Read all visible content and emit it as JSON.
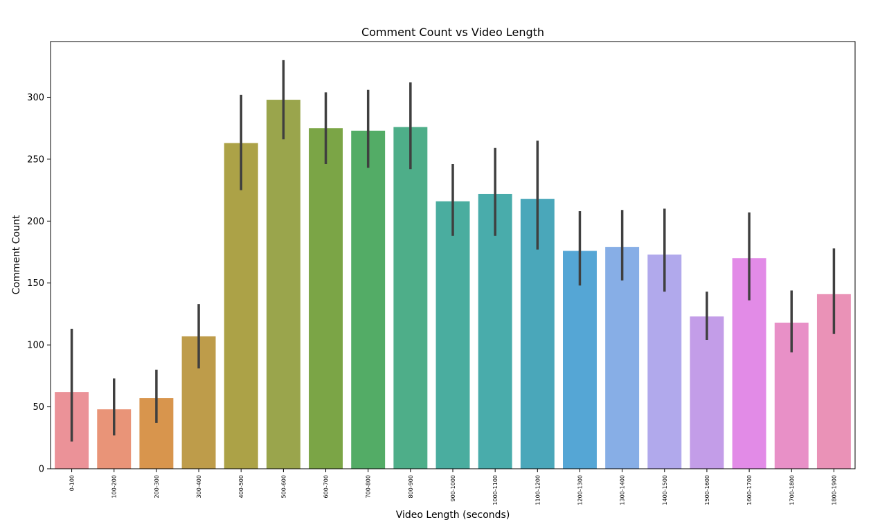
{
  "chart_data": {
    "type": "bar",
    "title": "Comment Count vs Video Length",
    "xlabel": "Video Length (seconds)",
    "ylabel": "Comment Count",
    "ylim": [
      0,
      345
    ],
    "yticks": [
      0,
      50,
      100,
      150,
      200,
      250,
      300
    ],
    "grid": false,
    "legend": "none",
    "categories": [
      "0-100",
      "100-200",
      "200-300",
      "300-400",
      "400-500",
      "500-600",
      "600-700",
      "700-800",
      "800-900",
      "900-1000",
      "1000-1100",
      "1100-1200",
      "1200-1300",
      "1300-1400",
      "1400-1500",
      "1500-1600",
      "1600-1700",
      "1700-1800",
      "1800-1900"
    ],
    "values": [
      62,
      48,
      57,
      107,
      263,
      298,
      275,
      273,
      276,
      216,
      222,
      218,
      176,
      179,
      173,
      123,
      170,
      118,
      141
    ],
    "error_low": [
      22,
      27,
      37,
      81,
      225,
      266,
      246,
      243,
      242,
      188,
      188,
      177,
      148,
      152,
      143,
      104,
      136,
      94,
      109
    ],
    "error_high": [
      113,
      73,
      80,
      133,
      302,
      330,
      304,
      306,
      312,
      246,
      259,
      265,
      208,
      209,
      210,
      143,
      207,
      144,
      178
    ],
    "colors": [
      "#eb9298",
      "#e99478",
      "#d8954d",
      "#be9c4a",
      "#aca247",
      "#9aa54c",
      "#7ba546",
      "#53ac66",
      "#4eae89",
      "#4aad9f",
      "#49acab",
      "#4aa7ba",
      "#55a6d5",
      "#87aee6",
      "#b1a9ec",
      "#c39de8",
      "#e28be7",
      "#e890c7",
      "#ea92b7"
    ],
    "error_color": "#3f3f3f"
  }
}
